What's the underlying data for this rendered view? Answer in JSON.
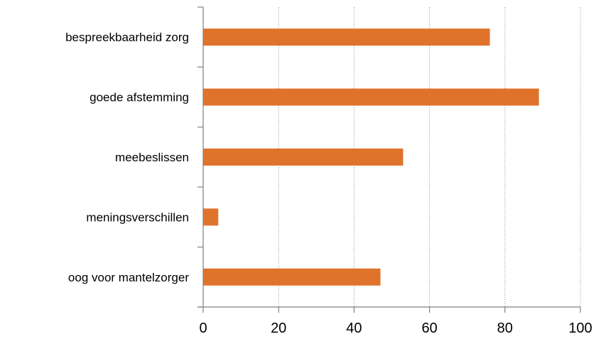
{
  "chart_data": {
    "type": "bar",
    "orientation": "horizontal",
    "categories": [
      "bespreekbaarheid zorg",
      "goede afstemming",
      "meebeslissen",
      "meningsverschillen",
      "oog voor mantelzorger"
    ],
    "values": [
      76,
      89,
      53,
      4,
      47
    ],
    "xlim": [
      0,
      100
    ],
    "x_ticks": [
      0,
      20,
      40,
      60,
      80,
      100
    ],
    "grid": "vertical-dotted",
    "bar_color": "#E0732B"
  }
}
